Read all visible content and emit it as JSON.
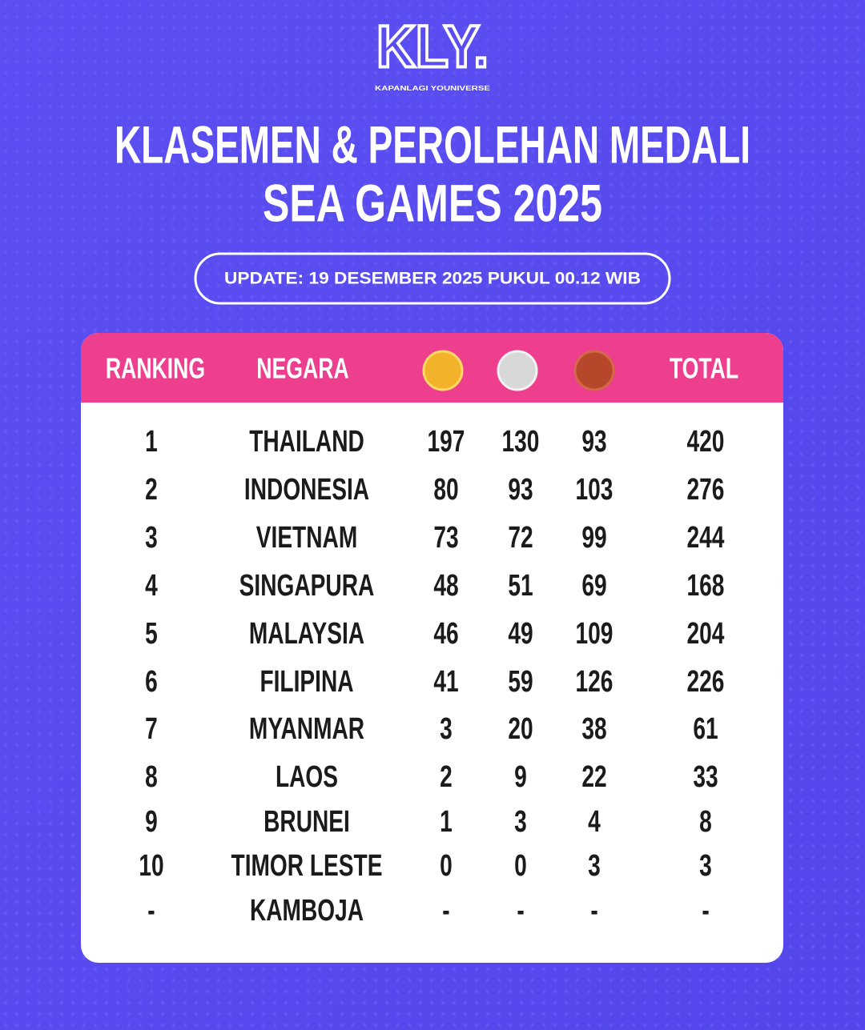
{
  "logo": {
    "mark": "KLY.",
    "tagline": "KAPANLAGI YOUNIVERSE"
  },
  "title": [
    "KLASEMEN & PEROLEHAN MEDALI",
    "SEA GAMES 2025"
  ],
  "update": "UPDATE: 19 DESEMBER 2025 PUKUL 00.12 WIB",
  "table": {
    "headers": {
      "ranking": "RANKING",
      "negara": "NEGARA",
      "total": "TOTAL"
    },
    "rows": [
      [
        1,
        "THAILAND",
        197,
        130,
        93,
        420
      ],
      [
        2,
        "INDONESIA",
        80,
        93,
        103,
        276
      ],
      [
        3,
        "VIETNAM",
        73,
        72,
        99,
        244
      ],
      [
        4,
        "SINGAPURA",
        48,
        51,
        69,
        168
      ],
      [
        5,
        "MALAYSIA",
        46,
        49,
        109,
        204
      ],
      [
        6,
        "FILIPINA",
        41,
        59,
        126,
        226
      ],
      [
        7,
        "MYANMAR",
        3,
        20,
        38,
        61
      ],
      [
        8,
        "LAOS",
        2,
        9,
        22,
        33
      ],
      [
        9,
        "BRUNEI",
        1,
        3,
        4,
        8
      ],
      [
        10,
        "TIMOR LESTE",
        0,
        0,
        3,
        3
      ],
      [
        "-",
        "KAMBOJA",
        "-",
        "-",
        "-",
        "-"
      ]
    ]
  }
}
